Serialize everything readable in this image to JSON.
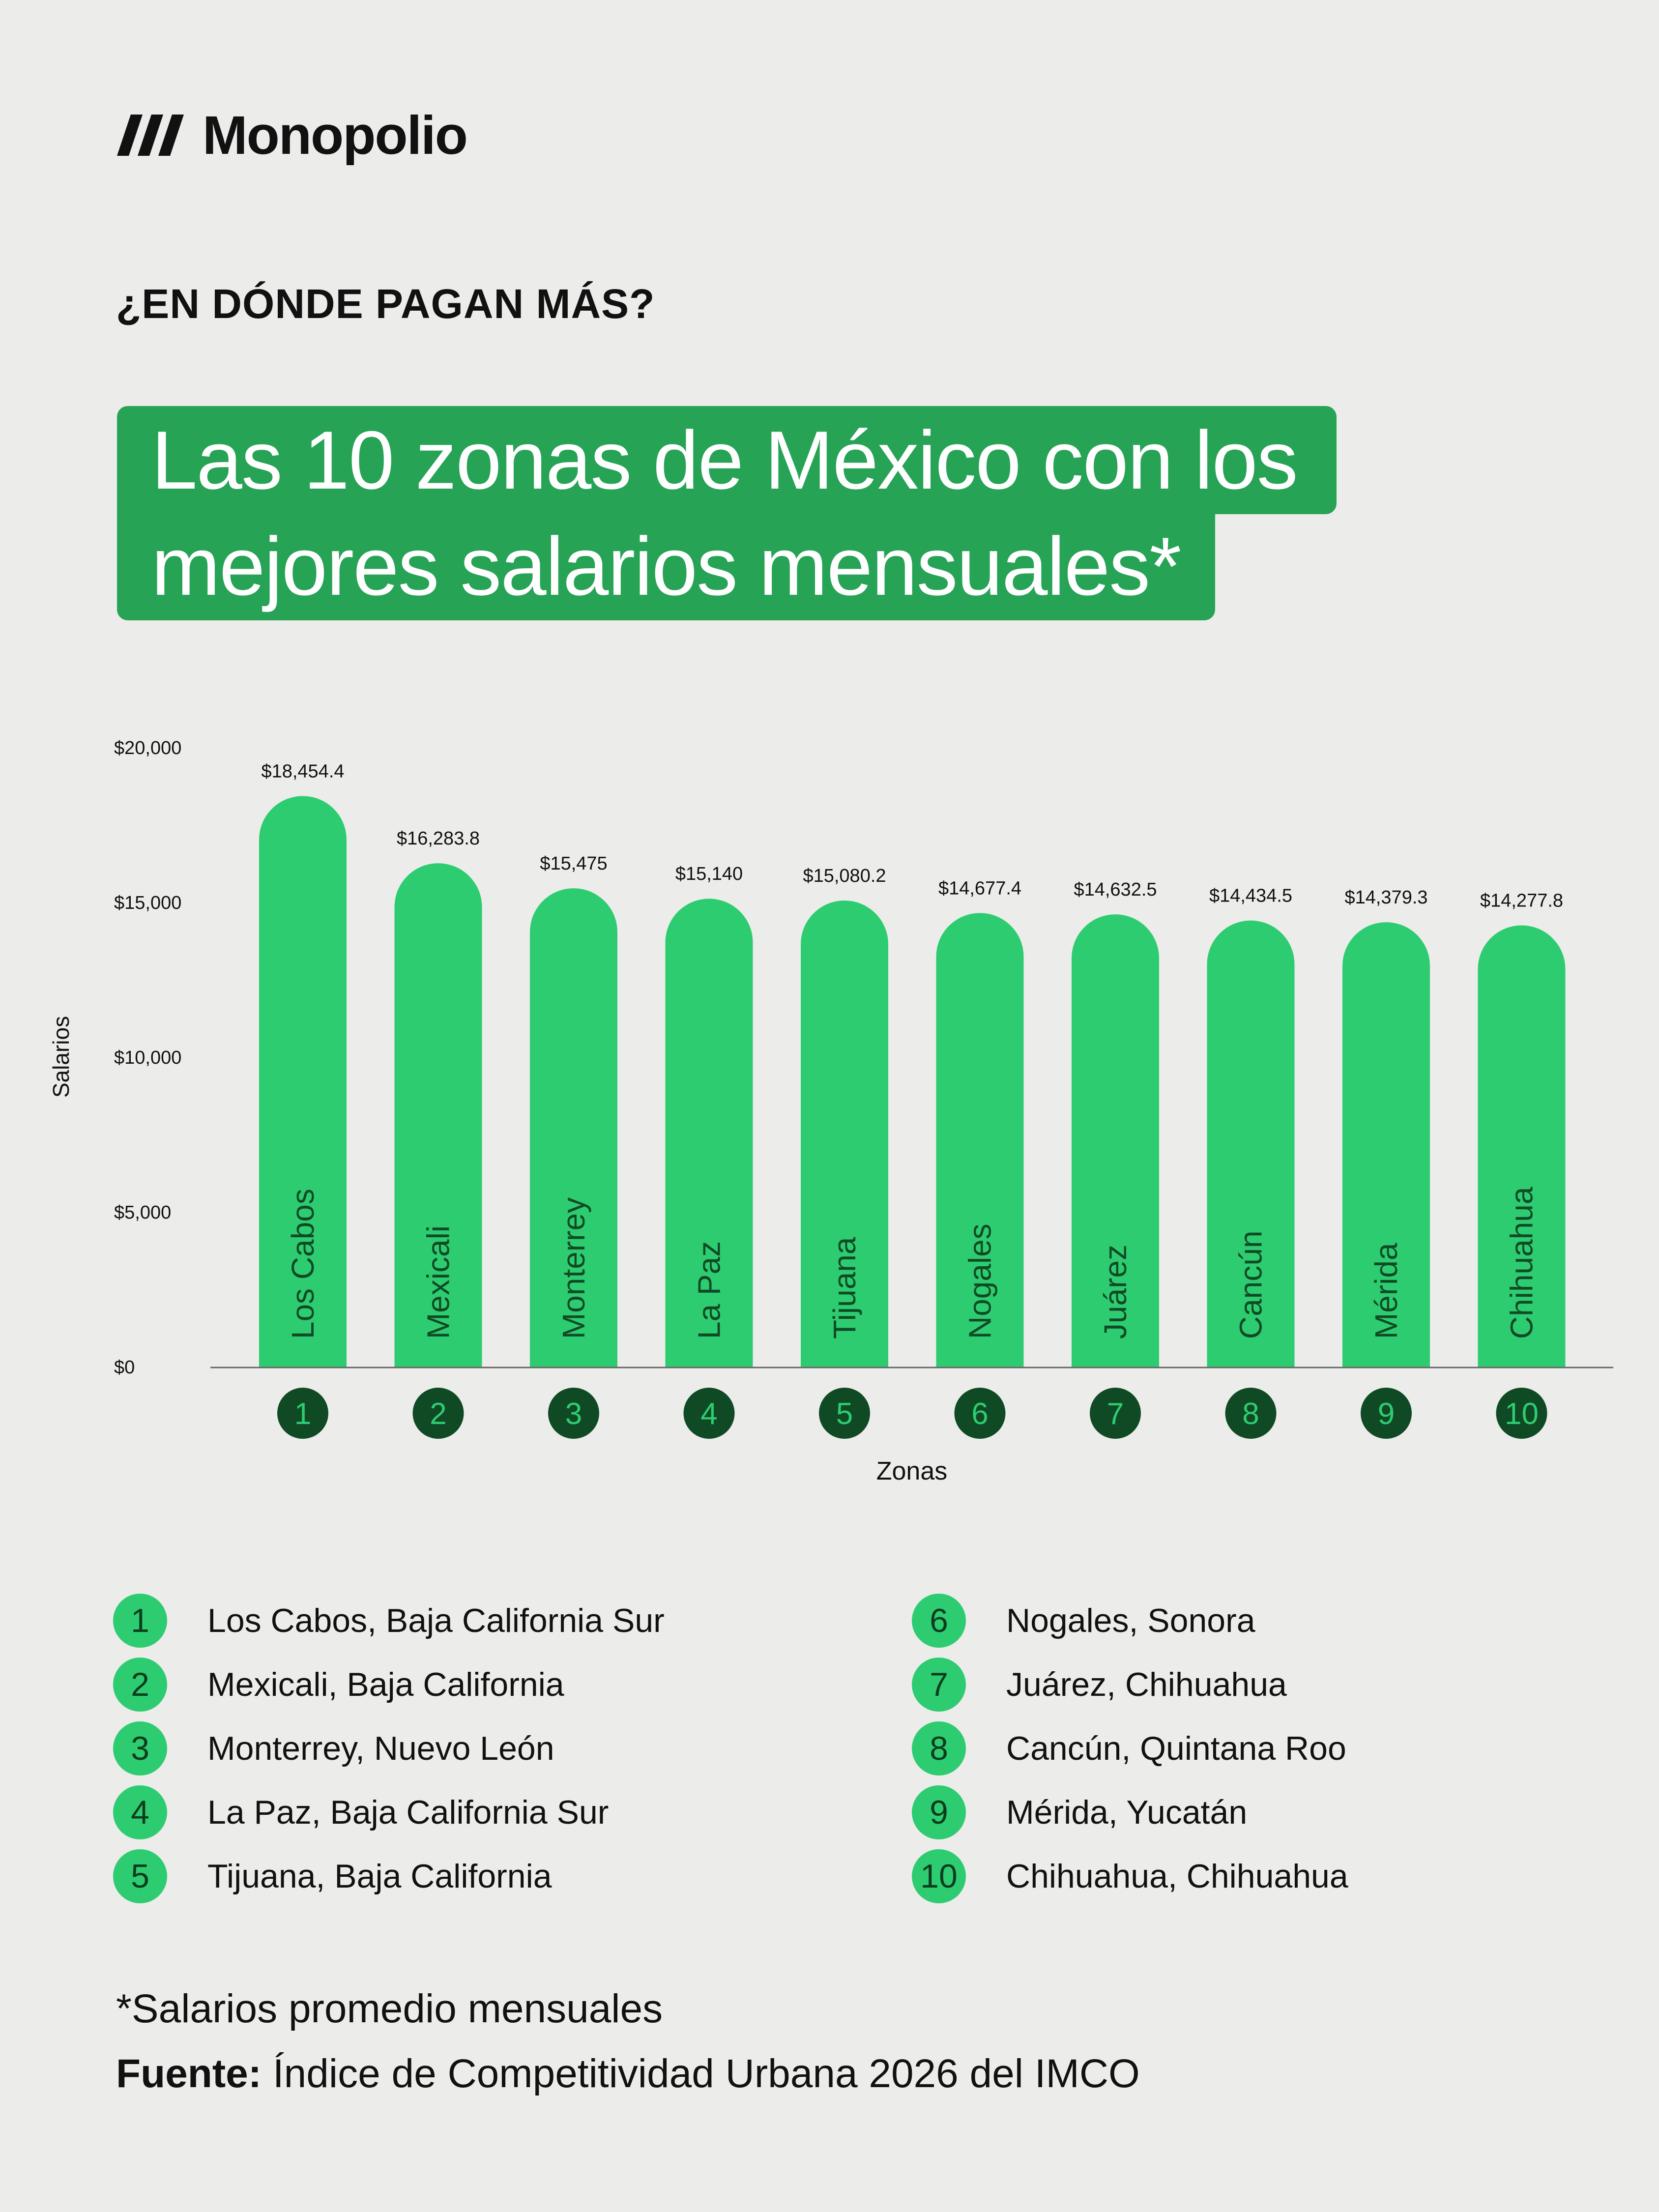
{
  "brand": {
    "name": "Monopolio",
    "logo_icon": "monopolio-logo-icon"
  },
  "kicker": "¿EN DÓNDE PAGAN MÁS?",
  "title": {
    "line1": "Las 10 zonas de México con los",
    "line2": "mejores salarios mensuales*"
  },
  "colors": {
    "bar": "#2ecc71",
    "title_bg": "#27a356",
    "badge_dark": "#0f4a25",
    "background": "#ececea"
  },
  "chart_data": {
    "type": "bar",
    "xlabel": "Zonas",
    "ylabel": "Salarios",
    "ylim": [
      0,
      20000
    ],
    "yticks": [
      "$0",
      "$5,000",
      "$10,000",
      "$15,000",
      "$20,000"
    ],
    "ytick_values": [
      0,
      5000,
      10000,
      15000,
      20000
    ],
    "grid": false,
    "categories": [
      "Los Cabos",
      "Mexicali",
      "Monterrey",
      "La Paz",
      "Tijuana",
      "Nogales",
      "Juárez",
      "Cancún",
      "Mérida",
      "Chihuahua"
    ],
    "ranks": [
      "1",
      "2",
      "3",
      "4",
      "5",
      "6",
      "7",
      "8",
      "9",
      "10"
    ],
    "values": [
      18454.4,
      16283.8,
      15475,
      15140,
      15080.2,
      14677.4,
      14632.5,
      14434.5,
      14379.3,
      14277.8
    ],
    "value_labels": [
      "$18,454.4",
      "$16,283.8",
      "$15,475",
      "$15,140",
      "$15,080.2",
      "$14,677.4",
      "$14,632.5",
      "$14,434.5",
      "$14,379.3",
      "$14,277.8"
    ]
  },
  "legend": [
    {
      "num": "1",
      "label": "Los Cabos, Baja California Sur"
    },
    {
      "num": "2",
      "label": "Mexicali, Baja California"
    },
    {
      "num": "3",
      "label": "Monterrey, Nuevo León"
    },
    {
      "num": "4",
      "label": "La Paz, Baja California Sur"
    },
    {
      "num": "5",
      "label": "Tijuana, Baja California"
    },
    {
      "num": "6",
      "label": "Nogales, Sonora"
    },
    {
      "num": "7",
      "label": "Juárez, Chihuahua"
    },
    {
      "num": "8",
      "label": "Cancún, Quintana Roo"
    },
    {
      "num": "9",
      "label": "Mérida, Yucatán"
    },
    {
      "num": "10",
      "label": "Chihuahua, Chihuahua"
    }
  ],
  "footnote": "*Salarios promedio mensuales",
  "source": {
    "label": "Fuente:",
    "text": " Índice de Competitividad Urbana 2026 del IMCO"
  }
}
